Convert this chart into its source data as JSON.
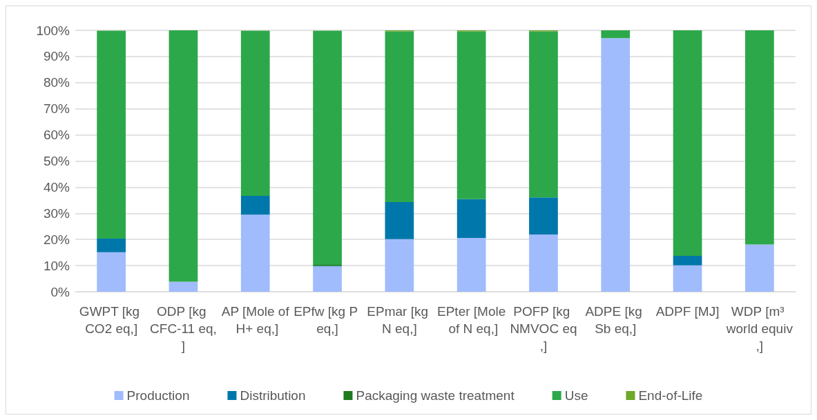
{
  "chart_data": {
    "type": "bar",
    "stacked": true,
    "categories": [
      "GWPT [kg CO2 eq,]",
      "ODP [kg CFC-11 eq,]",
      "AP [Mole of H+ eq,]",
      "EPfw [kg P eq,]",
      "EPmar [kg N eq,]",
      "EPter [Mole of N eq,]",
      "POFP [kg NMVOC eq,]",
      "ADPE [kg Sb eq,]",
      "ADPF [MJ]",
      "WDP [m³ world equiv,]"
    ],
    "series": [
      {
        "name": "Production",
        "color": "#a0bcfd",
        "values": [
          15.1,
          3.8,
          29.5,
          9.7,
          20.1,
          20.6,
          21.9,
          97.0,
          10.1,
          18.1
        ]
      },
      {
        "name": "Distribution",
        "color": "#0077aa",
        "values": [
          5.2,
          0,
          7.2,
          0.2,
          14.2,
          14.8,
          14.2,
          0,
          3.6,
          0
        ]
      },
      {
        "name": "Packaging waste treatment",
        "color": "#1e7b1e",
        "values": [
          0,
          0,
          0,
          0.4,
          0,
          0,
          0,
          0,
          0,
          0
        ]
      },
      {
        "name": "Use",
        "color": "#2ca84a",
        "values": [
          79.6,
          96.2,
          63.2,
          89.6,
          65.3,
          64.2,
          63.5,
          3.0,
          86.3,
          81.9
        ]
      },
      {
        "name": "End-of-Life",
        "color": "#70a82a",
        "values": [
          null,
          0,
          null,
          null,
          0.4,
          0.4,
          0.4,
          0,
          0,
          0
        ]
      }
    ],
    "ylim": [
      0,
      100
    ],
    "yticks": [
      {
        "value": 0,
        "label": "0%"
      },
      {
        "value": 10,
        "label": "10%"
      },
      {
        "value": 20,
        "label": "20%"
      },
      {
        "value": 30,
        "label": "30%"
      },
      {
        "value": 40,
        "label": "40%"
      },
      {
        "value": 50,
        "label": "50%"
      },
      {
        "value": 60,
        "label": "60%"
      },
      {
        "value": 70,
        "label": "70%"
      },
      {
        "value": 80,
        "label": "80%"
      },
      {
        "value": 90,
        "label": "90%"
      },
      {
        "value": 100,
        "label": "100%"
      }
    ],
    "grid": "y",
    "legend": "bottom"
  }
}
